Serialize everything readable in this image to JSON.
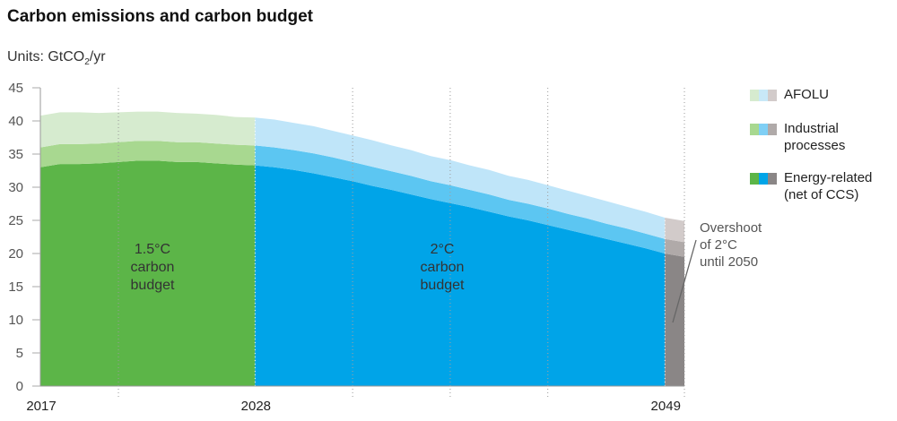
{
  "title": "Carbon emissions and carbon budget",
  "units": {
    "prefix": "Units: GtCO",
    "sub": "2",
    "suffix": "/yr"
  },
  "legend": [
    {
      "label_lines": [
        "AFOLU"
      ],
      "colors": [
        "#d6ebcf",
        "#c8e8f7",
        "#d2cbca"
      ]
    },
    {
      "label_lines": [
        "Industrial",
        "processes"
      ],
      "colors": [
        "#a8d890",
        "#7fcff5",
        "#b0aaa9"
      ]
    },
    {
      "label_lines": [
        "Energy-related",
        "(net of CCS)"
      ],
      "colors": [
        "#5cb548",
        "#00a4e8",
        "#8a8686"
      ]
    }
  ],
  "colors": {
    "green_energy": "#5cb548",
    "green_industrial": "#a8d890",
    "green_afolu": "#d6ebcf",
    "blue_energy": "#00a4e8",
    "blue_industrial": "#5cc6f2",
    "blue_afolu": "#bfe5f9",
    "grey_energy": "#8a8686",
    "grey_industrial": "#b0aaa9",
    "grey_afolu": "#d2cbca"
  },
  "overshoot_label": [
    "Overshoot",
    "of 2°C",
    "until 2050"
  ],
  "chart_data": {
    "type": "area",
    "ylabel": "GtCO2/yr",
    "ylim": [
      0,
      45
    ],
    "yticks": [
      0,
      5,
      10,
      15,
      20,
      25,
      30,
      35,
      40,
      45
    ],
    "xlim": [
      2017,
      2050
    ],
    "xtick_labels": [
      "2017",
      "2028",
      "2049"
    ],
    "xtick_values": [
      2017,
      2028,
      2049
    ],
    "grid": "vertical dotted",
    "legend_position": "right",
    "x": [
      2017,
      2018,
      2019,
      2020,
      2021,
      2022,
      2023,
      2024,
      2025,
      2026,
      2027,
      2028,
      2029,
      2030,
      2031,
      2032,
      2033,
      2034,
      2035,
      2036,
      2037,
      2038,
      2039,
      2040,
      2041,
      2042,
      2043,
      2044,
      2045,
      2046,
      2047,
      2048,
      2049,
      2050
    ],
    "series": [
      {
        "name": "Energy-related (net of CCS)",
        "values": [
          33.0,
          33.5,
          33.5,
          33.6,
          33.8,
          34.0,
          34.0,
          33.8,
          33.8,
          33.6,
          33.4,
          33.3,
          33.0,
          32.6,
          32.1,
          31.5,
          30.9,
          30.2,
          29.6,
          28.9,
          28.2,
          27.6,
          27.0,
          26.3,
          25.6,
          25.0,
          24.3,
          23.6,
          22.9,
          22.2,
          21.5,
          20.8,
          20.0,
          19.5
        ]
      },
      {
        "name": "Industrial processes",
        "values": [
          3.0,
          3.0,
          3.0,
          3.0,
          3.0,
          3.0,
          3.0,
          3.0,
          3.0,
          3.0,
          3.0,
          3.0,
          3.0,
          3.0,
          3.0,
          3.0,
          2.9,
          2.9,
          2.8,
          2.8,
          2.7,
          2.7,
          2.6,
          2.6,
          2.5,
          2.5,
          2.5,
          2.4,
          2.4,
          2.3,
          2.3,
          2.2,
          2.2,
          2.2
        ]
      },
      {
        "name": "AFOLU",
        "values": [
          4.8,
          4.8,
          4.8,
          4.6,
          4.5,
          4.4,
          4.4,
          4.4,
          4.3,
          4.3,
          4.2,
          4.2,
          4.2,
          4.1,
          4.1,
          4.0,
          4.0,
          4.0,
          3.9,
          3.9,
          3.8,
          3.8,
          3.7,
          3.7,
          3.6,
          3.6,
          3.5,
          3.5,
          3.4,
          3.4,
          3.3,
          3.3,
          3.2,
          3.2
        ]
      }
    ],
    "regions": [
      {
        "label_lines": [
          "1.5°C",
          "carbon",
          "budget"
        ],
        "from": 2017,
        "to": 2028,
        "palette": "green"
      },
      {
        "label_lines": [
          "2°C",
          "carbon",
          "budget"
        ],
        "from": 2028,
        "to": 2049,
        "palette": "blue"
      },
      {
        "label_lines": [
          "Overshoot",
          "of 2°C",
          "until 2050"
        ],
        "from": 2049,
        "to": 2050,
        "palette": "grey"
      }
    ]
  }
}
